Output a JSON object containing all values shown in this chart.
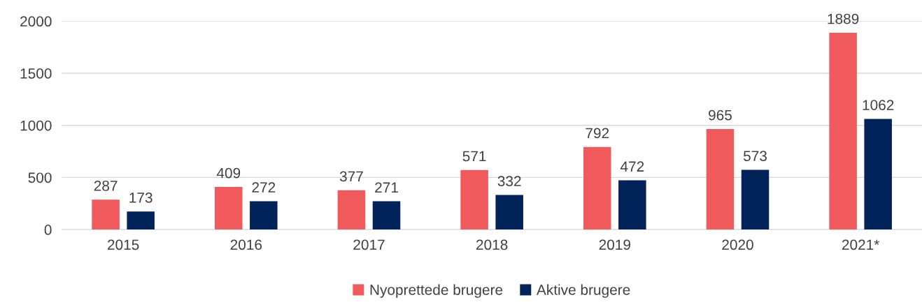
{
  "chart_data": {
    "type": "bar",
    "categories": [
      "2015",
      "2016",
      "2017",
      "2018",
      "2019",
      "2020",
      "2021*"
    ],
    "series": [
      {
        "name": "Nyoprettede brugere",
        "color": "#f05a5c",
        "values": [
          287,
          409,
          377,
          571,
          792,
          965,
          1889
        ]
      },
      {
        "name": "Aktive brugere",
        "color": "#00245a",
        "values": [
          173,
          272,
          271,
          332,
          472,
          573,
          1062
        ]
      }
    ],
    "ylim": [
      0,
      2000
    ],
    "yticks": [
      0,
      500,
      1000,
      1500,
      2000
    ],
    "grid": "y",
    "legend": "bottom",
    "data_labels": true
  }
}
